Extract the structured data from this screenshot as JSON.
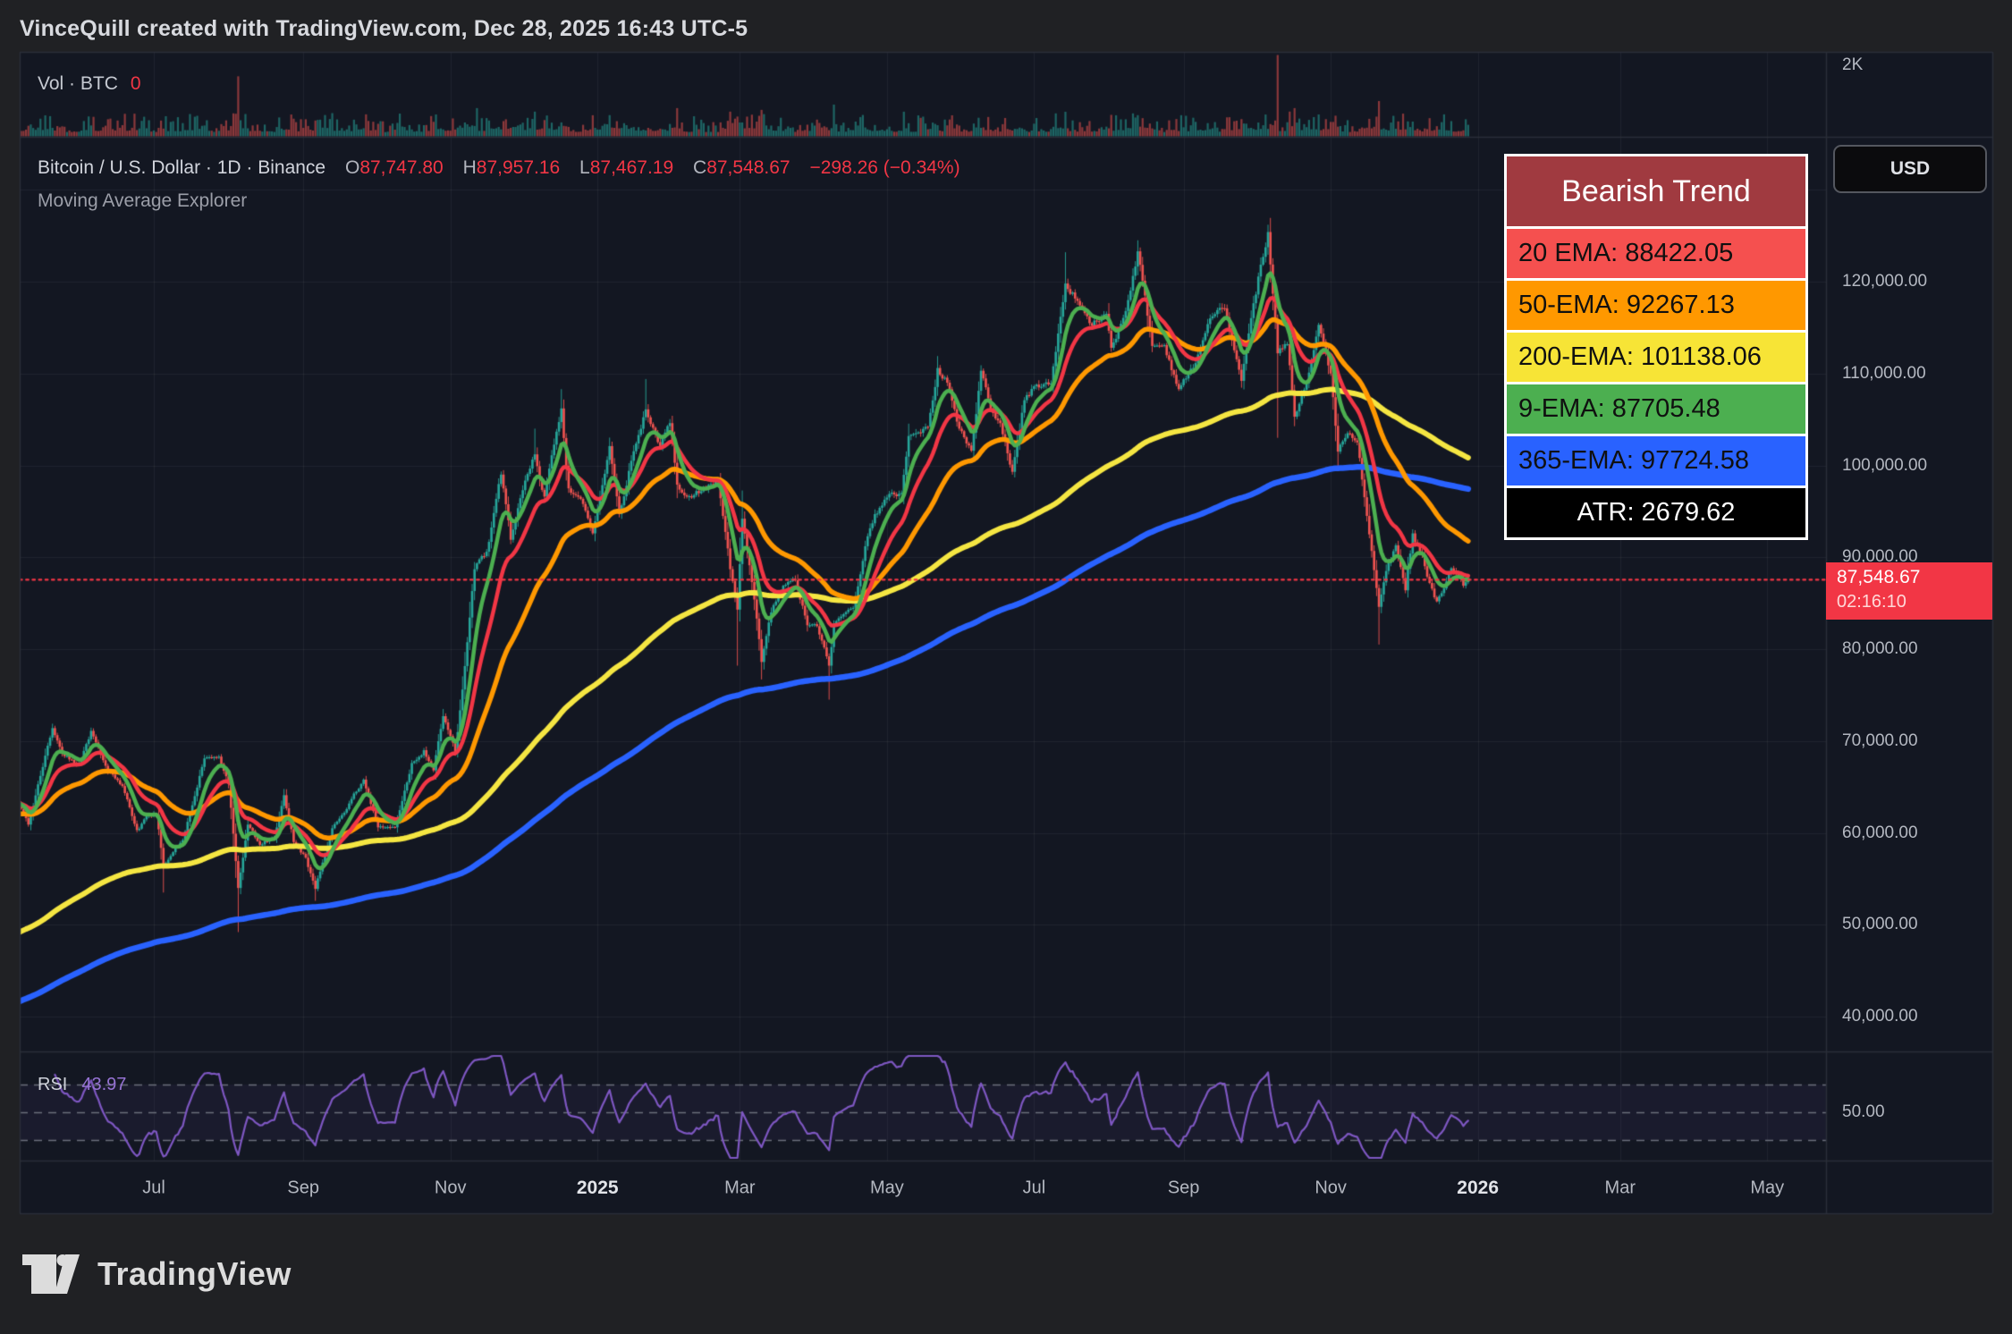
{
  "header": {
    "attribution": "VinceQuill created with TradingView.com, Dec 28, 2025 16:43 UTC-5"
  },
  "volume_pane": {
    "label": "Vol · BTC",
    "value": "0",
    "axis_top": "2K"
  },
  "symbol_line": {
    "title": "Bitcoin / U.S. Dollar · 1D · Binance",
    "o_label": "O",
    "o": "87,747.80",
    "h_label": "H",
    "h": "87,957.16",
    "l_label": "L",
    "l": "87,467.19",
    "c_label": "C",
    "c": "87,548.67",
    "change": "−298.26 (−0.34%)"
  },
  "indicator_line": {
    "label": "Moving Average Explorer"
  },
  "trend_panel": {
    "title": "Bearish Trend",
    "title_bg": "#a03a40",
    "rows": [
      {
        "label": "20 EMA: 88422.05",
        "bg": "#f5504f"
      },
      {
        "label": "50-EMA: 92267.13",
        "bg": "#ff9800"
      },
      {
        "label": "200-EMA: 101138.06",
        "bg": "#f7e436"
      },
      {
        "label": "9-EMA: 87705.48",
        "bg": "#4caf50"
      },
      {
        "label": "365-EMA: 97724.58",
        "bg": "#2962ff"
      }
    ],
    "atr_row": {
      "label": "ATR: 2679.62",
      "bg": "#000000"
    }
  },
  "usd_button": {
    "label": "USD"
  },
  "price_axis": {
    "labels": [
      {
        "text": "120,000.00",
        "value": 120000
      },
      {
        "text": "110,000.00",
        "value": 110000
      },
      {
        "text": "100,000.00",
        "value": 100000
      },
      {
        "text": "90,000.00",
        "value": 90000
      },
      {
        "text": "80,000.00",
        "value": 80000
      },
      {
        "text": "70,000.00",
        "value": 70000
      },
      {
        "text": "60,000.00",
        "value": 60000
      },
      {
        "text": "50,000.00",
        "value": 50000
      },
      {
        "text": "40,000.00",
        "value": 40000
      }
    ],
    "last_price": "87,548.67",
    "countdown": "02:16:10",
    "rsi_axis_label": "50.00"
  },
  "rsi_pane": {
    "label": "RSI",
    "value": "43.97"
  },
  "time_axis": {
    "ticks": [
      {
        "label": "Jul",
        "date": "2024-07-01",
        "bold": false
      },
      {
        "label": "Sep",
        "date": "2024-09-01",
        "bold": false
      },
      {
        "label": "Nov",
        "date": "2024-11-01",
        "bold": false
      },
      {
        "label": "2025",
        "date": "2025-01-01",
        "bold": true
      },
      {
        "label": "Mar",
        "date": "2025-03-01",
        "bold": false
      },
      {
        "label": "May",
        "date": "2025-05-01",
        "bold": false
      },
      {
        "label": "Jul",
        "date": "2025-07-01",
        "bold": false
      },
      {
        "label": "Sep",
        "date": "2025-09-01",
        "bold": false
      },
      {
        "label": "Nov",
        "date": "2025-11-01",
        "bold": false
      },
      {
        "label": "2026",
        "date": "2026-01-01",
        "bold": true
      },
      {
        "label": "Mar",
        "date": "2026-03-01",
        "bold": false
      },
      {
        "label": "May",
        "date": "2026-05-01",
        "bold": false
      }
    ]
  },
  "logo": {
    "text": "TradingView"
  },
  "colors": {
    "chart_bg": "#131722",
    "outer_bg": "#202124",
    "grid": "rgba(255,255,255,0.055)",
    "border": "#2a2e39",
    "candle_up": "#26a69a",
    "candle_down": "#ef5350",
    "ema9": "#4caf50",
    "ema20": "#f23645",
    "ema50": "#ff9800",
    "ema200": "#f5e642",
    "ema365": "#2962ff",
    "rsi_line": "#7e57c2",
    "last_price_line": "#f23645",
    "badge_bg": "#f23645"
  },
  "chart_data": {
    "type": "candlestick",
    "title": "Bitcoin / U.S. Dollar · 1D · Binance",
    "exchange": "Binance",
    "timeframe": "1D",
    "trend": "Bearish Trend",
    "last": {
      "open": 87747.8,
      "high": 87957.16,
      "low": 87467.19,
      "close": 87548.67,
      "change": -298.26,
      "change_pct": -0.34
    },
    "atr": 2679.62,
    "emas": [
      {
        "period": 9,
        "value": 87705.48,
        "color": "#4caf50"
      },
      {
        "period": 20,
        "value": 88422.05,
        "color": "#f23645"
      },
      {
        "period": 50,
        "value": 92267.13,
        "color": "#ff9800"
      },
      {
        "period": 200,
        "value": 101138.06,
        "color": "#f5e642"
      },
      {
        "period": 365,
        "value": 97724.58,
        "color": "#2962ff"
      }
    ],
    "ema_seeds_kusd": {
      "e9": null,
      "e20": null,
      "e50": 62.0,
      "e200": 49.0,
      "e365": 41.5
    },
    "rsi": {
      "period": 14,
      "value": 43.97,
      "levels": [
        70,
        50,
        30
      ]
    },
    "ylim": [
      40000,
      130000
    ],
    "volume_axis_top_btc": 2000,
    "price_series_kusd": [
      [
        "2024-05-06",
        63.2
      ],
      [
        "2024-05-10",
        60.9
      ],
      [
        "2024-05-15",
        66.2
      ],
      [
        "2024-05-20",
        71.4
      ],
      [
        "2024-05-24",
        68.6
      ],
      [
        "2024-05-31",
        67.5
      ],
      [
        "2024-06-05",
        71.1
      ],
      [
        "2024-06-11",
        67.3
      ],
      [
        "2024-06-18",
        65.1
      ],
      [
        "2024-06-24",
        60.3
      ],
      [
        "2024-06-28",
        61.8
      ],
      [
        "2024-07-02",
        62.0
      ],
      [
        "2024-07-05",
        56.6
      ],
      [
        "2024-07-13",
        59.2
      ],
      [
        "2024-07-18",
        64.0
      ],
      [
        "2024-07-22",
        68.1
      ],
      [
        "2024-07-28",
        68.3
      ],
      [
        "2024-08-01",
        65.3
      ],
      [
        "2024-08-05",
        54.0
      ],
      [
        "2024-08-09",
        60.9
      ],
      [
        "2024-08-14",
        58.7
      ],
      [
        "2024-08-20",
        59.5
      ],
      [
        "2024-08-24",
        64.1
      ],
      [
        "2024-08-28",
        59.0
      ],
      [
        "2024-09-02",
        57.3
      ],
      [
        "2024-09-06",
        53.9
      ],
      [
        "2024-09-13",
        60.5
      ],
      [
        "2024-09-20",
        63.2
      ],
      [
        "2024-09-26",
        65.8
      ],
      [
        "2024-10-02",
        60.6
      ],
      [
        "2024-10-09",
        60.6
      ],
      [
        "2024-10-16",
        67.6
      ],
      [
        "2024-10-21",
        69.0
      ],
      [
        "2024-10-25",
        66.8
      ],
      [
        "2024-10-29",
        72.7
      ],
      [
        "2024-11-03",
        68.8
      ],
      [
        "2024-11-06",
        75.6
      ],
      [
        "2024-11-11",
        88.7
      ],
      [
        "2024-11-16",
        90.6
      ],
      [
        "2024-11-22",
        99.0
      ],
      [
        "2024-11-26",
        91.9
      ],
      [
        "2024-12-01",
        97.3
      ],
      [
        "2024-12-06",
        101.2
      ],
      [
        "2024-12-10",
        96.6
      ],
      [
        "2024-12-17",
        106.2
      ],
      [
        "2024-12-20",
        97.5
      ],
      [
        "2024-12-26",
        95.8
      ],
      [
        "2024-12-30",
        92.6
      ],
      [
        "2025-01-06",
        102.1
      ],
      [
        "2025-01-10",
        94.7
      ],
      [
        "2025-01-15",
        100.5
      ],
      [
        "2025-01-21",
        106.1
      ],
      [
        "2025-01-27",
        102.1
      ],
      [
        "2025-01-31",
        104.6
      ],
      [
        "2025-02-03",
        97.9
      ],
      [
        "2025-02-09",
        96.5
      ],
      [
        "2025-02-14",
        97.5
      ],
      [
        "2025-02-20",
        98.3
      ],
      [
        "2025-02-25",
        88.7
      ],
      [
        "2025-02-28",
        84.3
      ],
      [
        "2025-03-02",
        94.2
      ],
      [
        "2025-03-06",
        87.3
      ],
      [
        "2025-03-10",
        78.6
      ],
      [
        "2025-03-14",
        84.0
      ],
      [
        "2025-03-19",
        86.9
      ],
      [
        "2025-03-24",
        87.5
      ],
      [
        "2025-03-29",
        82.6
      ],
      [
        "2025-04-02",
        82.5
      ],
      [
        "2025-04-07",
        78.2
      ],
      [
        "2025-04-09",
        82.6
      ],
      [
        "2025-04-13",
        83.8
      ],
      [
        "2025-04-17",
        84.5
      ],
      [
        "2025-04-22",
        91.2
      ],
      [
        "2025-04-26",
        94.7
      ],
      [
        "2025-05-01",
        96.5
      ],
      [
        "2025-05-07",
        97.0
      ],
      [
        "2025-05-10",
        103.2
      ],
      [
        "2025-05-14",
        103.6
      ],
      [
        "2025-05-18",
        104.2
      ],
      [
        "2025-05-22",
        110.6
      ],
      [
        "2025-05-26",
        109.0
      ],
      [
        "2025-05-31",
        104.0
      ],
      [
        "2025-06-05",
        101.6
      ],
      [
        "2025-06-09",
        110.3
      ],
      [
        "2025-06-13",
        106.1
      ],
      [
        "2025-06-17",
        104.6
      ],
      [
        "2025-06-22",
        99.3
      ],
      [
        "2025-06-27",
        107.1
      ],
      [
        "2025-07-02",
        108.8
      ],
      [
        "2025-07-08",
        108.9
      ],
      [
        "2025-07-14",
        119.8
      ],
      [
        "2025-07-19",
        117.9
      ],
      [
        "2025-07-25",
        115.2
      ],
      [
        "2025-07-31",
        116.5
      ],
      [
        "2025-08-02",
        112.8
      ],
      [
        "2025-08-08",
        116.8
      ],
      [
        "2025-08-13",
        123.3
      ],
      [
        "2025-08-19",
        113.0
      ],
      [
        "2025-08-24",
        113.1
      ],
      [
        "2025-08-30",
        108.3
      ],
      [
        "2025-09-05",
        110.6
      ],
      [
        "2025-09-12",
        116.0
      ],
      [
        "2025-09-18",
        117.1
      ],
      [
        "2025-09-25",
        109.2
      ],
      [
        "2025-10-01",
        118.6
      ],
      [
        "2025-10-06",
        125.4
      ],
      [
        "2025-10-10",
        112.2
      ],
      [
        "2025-10-14",
        113.2
      ],
      [
        "2025-10-17",
        105.3
      ],
      [
        "2025-10-23",
        110.1
      ],
      [
        "2025-10-27",
        115.3
      ],
      [
        "2025-11-01",
        110.0
      ],
      [
        "2025-11-04",
        101.5
      ],
      [
        "2025-11-08",
        103.5
      ],
      [
        "2025-11-12",
        102.5
      ],
      [
        "2025-11-16",
        94.5
      ],
      [
        "2025-11-21",
        84.6
      ],
      [
        "2025-11-24",
        88.5
      ],
      [
        "2025-11-28",
        91.3
      ],
      [
        "2025-12-02",
        86.4
      ],
      [
        "2025-12-05",
        92.6
      ],
      [
        "2025-12-09",
        90.2
      ],
      [
        "2025-12-12",
        87.2
      ],
      [
        "2025-12-15",
        85.2
      ],
      [
        "2025-12-18",
        86.6
      ],
      [
        "2025-12-21",
        88.8
      ],
      [
        "2025-12-24",
        88.0
      ],
      [
        "2025-12-26",
        86.9
      ],
      [
        "2025-12-28",
        87.55
      ]
    ],
    "wick_extremes_kusd": [
      [
        "2024-07-05",
        "low",
        53.5
      ],
      [
        "2024-08-05",
        "low",
        49.2
      ],
      [
        "2024-09-06",
        "low",
        52.6
      ],
      [
        "2024-12-06",
        "high",
        104.0
      ],
      [
        "2024-12-17",
        "high",
        108.3
      ],
      [
        "2025-01-21",
        "high",
        109.4
      ],
      [
        "2025-02-28",
        "low",
        78.2
      ],
      [
        "2025-03-10",
        "low",
        76.7
      ],
      [
        "2025-04-07",
        "low",
        74.5
      ],
      [
        "2025-05-22",
        "high",
        111.9
      ],
      [
        "2025-07-14",
        "high",
        123.2
      ],
      [
        "2025-08-13",
        "high",
        124.5
      ],
      [
        "2025-10-06",
        "high",
        126.2
      ],
      [
        "2025-10-10",
        "low",
        103.0
      ],
      [
        "2025-11-21",
        "low",
        80.5
      ]
    ],
    "volume_spikes_btc": [
      [
        "2024-05-15",
        500
      ],
      [
        "2024-08-05",
        1700
      ],
      [
        "2024-11-12",
        800
      ],
      [
        "2024-12-06",
        700
      ],
      [
        "2025-02-03",
        800
      ],
      [
        "2025-02-25",
        700
      ],
      [
        "2025-03-10",
        750
      ],
      [
        "2025-04-09",
        900
      ],
      [
        "2025-08-13",
        600
      ],
      [
        "2025-10-10",
        2400
      ],
      [
        "2025-10-17",
        800
      ],
      [
        "2025-11-21",
        1000
      ]
    ]
  }
}
